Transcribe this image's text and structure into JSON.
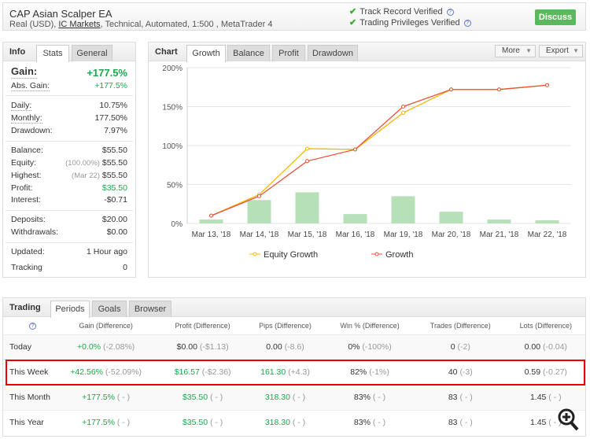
{
  "header": {
    "title": "CAP Asian Scalper EA",
    "subtitle_pre": "Real (USD), ",
    "broker": "IC Markets",
    "subtitle_post": ", Technical, Automated, 1:500 , MetaTrader 4",
    "verified": [
      "Track Record Verified",
      "Trading Privileges Verified"
    ],
    "discuss": "Discuss"
  },
  "info": {
    "heading": "Info",
    "tabs": [
      "Stats",
      "General"
    ],
    "gain_label": "Gain:",
    "gain": "+177.5%",
    "abs_label": "Abs. Gain:",
    "abs": "+177.5%",
    "daily_label": "Daily:",
    "daily": "10.75%",
    "monthly_label": "Monthly:",
    "monthly": "177.50%",
    "dd_label": "Drawdown:",
    "dd": "7.97%",
    "balance_label": "Balance:",
    "balance": "$55.50",
    "equity_label": "Equity:",
    "equity_note": "(100.00%)",
    "equity": "$55.50",
    "highest_label": "Highest:",
    "highest_note": "(Mar 22)",
    "highest": "$55.50",
    "profit_label": "Profit:",
    "profit": "$35.50",
    "interest_label": "Interest:",
    "interest": "-$0.71",
    "deposits_label": "Deposits:",
    "deposits": "$20.00",
    "withdrawals_label": "Withdrawals:",
    "withdrawals": "$0.00",
    "updated_label": "Updated:",
    "updated": "1 Hour ago",
    "tracking_label": "Tracking",
    "tracking": "0"
  },
  "chart": {
    "heading": "Chart",
    "tabs": [
      "Growth",
      "Balance",
      "Profit",
      "Drawdown"
    ],
    "more": "More",
    "export": "Export"
  },
  "chart_data": {
    "type": "line",
    "categories": [
      "Mar 13, '18",
      "Mar 14, '18",
      "Mar 15, '18",
      "Mar 16, '18",
      "Mar 19, '18",
      "Mar 20, '18",
      "Mar 21, '18",
      "Mar 22, '18"
    ],
    "yticks": [
      "0%",
      "50%",
      "100%",
      "150%",
      "200%"
    ],
    "ylim": [
      0,
      200
    ],
    "series": [
      {
        "name": "Equity Growth",
        "color": "#f5b800",
        "values": [
          10,
          37,
          96,
          95,
          142,
          172,
          172,
          177.5
        ]
      },
      {
        "name": "Growth",
        "color": "#e8503a",
        "values": [
          10,
          35,
          80,
          95,
          150,
          172,
          172,
          177.5
        ]
      }
    ],
    "bars": {
      "color": "#b6e0b8",
      "values": [
        5,
        30,
        40,
        12,
        35,
        15,
        5,
        4
      ]
    }
  },
  "trading": {
    "heading": "Trading",
    "tabs": [
      "Periods",
      "Goals",
      "Browser"
    ],
    "columns": [
      "?",
      "Gain (Difference)",
      "Profit (Difference)",
      "Pips (Difference)",
      "Win % (Difference)",
      "Trades (Difference)",
      "Lots (Difference)"
    ],
    "rows": [
      {
        "period": "Today",
        "cells": [
          [
            "+0.0%",
            "(-2.08%)",
            "g"
          ],
          [
            "$0.00",
            "(-$1.13)",
            ""
          ],
          [
            "0.00",
            "(-8.6)",
            ""
          ],
          [
            "0%",
            "(-100%)",
            ""
          ],
          [
            "0",
            "(-2)",
            ""
          ],
          [
            "0.00",
            "(-0.04)",
            ""
          ]
        ]
      },
      {
        "period": "This Week",
        "cells": [
          [
            "+42.56%",
            "(-52.09%)",
            "g"
          ],
          [
            "$16.57",
            "(-$2.36)",
            "g"
          ],
          [
            "161.30",
            "(+4.3)",
            "g"
          ],
          [
            "82%",
            "(-1%)",
            ""
          ],
          [
            "40",
            "(-3)",
            ""
          ],
          [
            "0.59",
            "(-0.27)",
            ""
          ]
        ]
      },
      {
        "period": "This Month",
        "cells": [
          [
            "+177.5%",
            "( - )",
            "g"
          ],
          [
            "$35.50",
            "( - )",
            "g"
          ],
          [
            "318.30",
            "( - )",
            "g"
          ],
          [
            "83%",
            "( - )",
            ""
          ],
          [
            "83",
            "( - )",
            ""
          ],
          [
            "1.45",
            "( - )",
            ""
          ]
        ]
      },
      {
        "period": "This Year",
        "cells": [
          [
            "+177.5%",
            "( - )",
            "g"
          ],
          [
            "$35.50",
            "( - )",
            "g"
          ],
          [
            "318.30",
            "( - )",
            "g"
          ],
          [
            "83%",
            "( - )",
            ""
          ],
          [
            "83",
            "( - )",
            ""
          ],
          [
            "1.45",
            "( - )",
            ""
          ]
        ]
      }
    ]
  }
}
